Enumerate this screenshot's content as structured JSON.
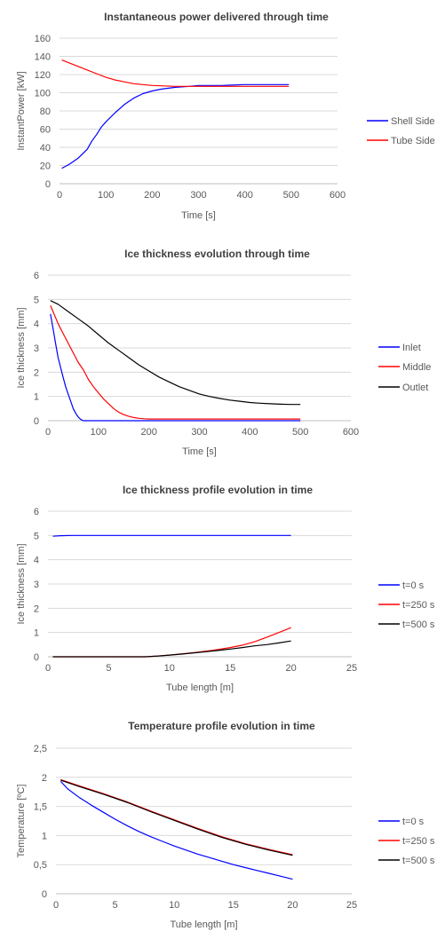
{
  "chart_data": [
    {
      "type": "line",
      "title": "Instantaneous power delivered through time",
      "xlabel": "Time [s]",
      "ylabel": "InstantPower [kW]",
      "xlim": [
        0,
        600
      ],
      "ylim": [
        0,
        160
      ],
      "xticks": [
        0,
        100,
        200,
        300,
        400,
        500,
        600
      ],
      "yticks": [
        0,
        20,
        40,
        60,
        80,
        100,
        120,
        140,
        160
      ],
      "xtick_labels": [
        "0",
        "100",
        "200",
        "300",
        "400",
        "500",
        "600"
      ],
      "ytick_labels": [
        "0",
        "20",
        "40",
        "60",
        "80",
        "100",
        "120",
        "140",
        "160"
      ],
      "grid": "horizontal",
      "legend_position": "right",
      "series": [
        {
          "name": "Shell Side",
          "color": "#0000ff",
          "x": [
            5,
            20,
            40,
            60,
            70,
            80,
            90,
            100,
            120,
            140,
            160,
            180,
            200,
            220,
            250,
            280,
            300,
            350,
            400,
            450,
            495
          ],
          "y": [
            17,
            21,
            28,
            38,
            47,
            54,
            62,
            68,
            78,
            87,
            94,
            99,
            102,
            104,
            106,
            107,
            108,
            108,
            109,
            109,
            109
          ]
        },
        {
          "name": "Tube Side",
          "color": "#ff0000",
          "x": [
            5,
            20,
            40,
            60,
            80,
            100,
            120,
            140,
            160,
            180,
            200,
            250,
            300,
            350,
            400,
            450,
            495
          ],
          "y": [
            136,
            133,
            129,
            125,
            121,
            117,
            114,
            112,
            110,
            109,
            108,
            107,
            107,
            107,
            107,
            107,
            107
          ]
        }
      ]
    },
    {
      "type": "line",
      "title": "Ice thickness evolution through time",
      "xlabel": "Time [s]",
      "ylabel": "Ice thickness [mm]",
      "xlim": [
        0,
        600
      ],
      "ylim": [
        0,
        6
      ],
      "xticks": [
        0,
        100,
        200,
        300,
        400,
        500,
        600
      ],
      "yticks": [
        0,
        1,
        2,
        3,
        4,
        5,
        6
      ],
      "xtick_labels": [
        "0",
        "100",
        "200",
        "300",
        "400",
        "500",
        "600"
      ],
      "ytick_labels": [
        "0",
        "1",
        "2",
        "3",
        "4",
        "5",
        "6"
      ],
      "grid": "horizontal",
      "legend_position": "right",
      "series": [
        {
          "name": "Inlet",
          "color": "#0000ff",
          "x": [
            5,
            10,
            15,
            20,
            25,
            30,
            35,
            40,
            45,
            50,
            55,
            60,
            65,
            70,
            80,
            100,
            150,
            200,
            300,
            400,
            500
          ],
          "y": [
            4.4,
            3.8,
            3.2,
            2.6,
            2.2,
            1.8,
            1.4,
            1.1,
            0.8,
            0.5,
            0.3,
            0.15,
            0.05,
            0,
            0,
            0,
            0,
            0,
            0,
            0,
            0
          ]
        },
        {
          "name": "Middle",
          "color": "#ff0000",
          "x": [
            5,
            10,
            20,
            30,
            40,
            50,
            60,
            70,
            80,
            90,
            100,
            110,
            120,
            130,
            140,
            150,
            160,
            170,
            180,
            190,
            200,
            250,
            300,
            400,
            500
          ],
          "y": [
            4.75,
            4.5,
            4.0,
            3.6,
            3.2,
            2.8,
            2.4,
            2.1,
            1.7,
            1.4,
            1.15,
            0.9,
            0.7,
            0.5,
            0.35,
            0.25,
            0.18,
            0.13,
            0.1,
            0.08,
            0.07,
            0.07,
            0.07,
            0.07,
            0.07
          ]
        },
        {
          "name": "Outlet",
          "color": "#000000",
          "x": [
            5,
            20,
            40,
            60,
            80,
            100,
            120,
            140,
            160,
            180,
            200,
            220,
            240,
            260,
            280,
            300,
            320,
            340,
            360,
            380,
            400,
            420,
            440,
            460,
            480,
            500
          ],
          "y": [
            4.95,
            4.8,
            4.5,
            4.2,
            3.9,
            3.55,
            3.2,
            2.9,
            2.6,
            2.3,
            2.05,
            1.8,
            1.6,
            1.4,
            1.25,
            1.1,
            1.0,
            0.92,
            0.85,
            0.8,
            0.75,
            0.72,
            0.7,
            0.68,
            0.67,
            0.67
          ]
        }
      ]
    },
    {
      "type": "line",
      "title": "Ice thickness profile evolution in time",
      "xlabel": "Tube length [m]",
      "ylabel": "Ice thickness [mm]",
      "xlim": [
        0,
        25
      ],
      "ylim": [
        0,
        6
      ],
      "xticks": [
        0,
        5,
        10,
        15,
        20,
        25
      ],
      "yticks": [
        0,
        1,
        2,
        3,
        4,
        5,
        6
      ],
      "xtick_labels": [
        "0",
        "5",
        "10",
        "15",
        "20",
        "25"
      ],
      "ytick_labels": [
        "0",
        "1",
        "2",
        "3",
        "4",
        "5",
        "6"
      ],
      "grid": "horizontal",
      "legend_position": "right",
      "series": [
        {
          "name": "t=0 s",
          "color": "#0000ff",
          "x": [
            0.4,
            1,
            2,
            5,
            10,
            15,
            20
          ],
          "y": [
            4.97,
            4.99,
            5,
            5,
            5,
            5,
            5
          ]
        },
        {
          "name": "t=250 s",
          "color": "#ff0000",
          "x": [
            0.4,
            5,
            8,
            9,
            10,
            11,
            12,
            13,
            14,
            15,
            16,
            17,
            18,
            19,
            20
          ],
          "y": [
            0,
            0,
            0,
            0.03,
            0.07,
            0.12,
            0.17,
            0.23,
            0.3,
            0.38,
            0.48,
            0.62,
            0.8,
            1.0,
            1.2
          ]
        },
        {
          "name": "t=500 s",
          "color": "#000000",
          "x": [
            0.4,
            5,
            8,
            9,
            10,
            11,
            12,
            13,
            14,
            15,
            16,
            17,
            18,
            19,
            20
          ],
          "y": [
            0,
            0,
            0,
            0.03,
            0.07,
            0.11,
            0.16,
            0.21,
            0.26,
            0.32,
            0.38,
            0.45,
            0.5,
            0.57,
            0.65
          ]
        }
      ]
    },
    {
      "type": "line",
      "title": "Temperature profile evolution in time",
      "xlabel": "Tube length [m]",
      "ylabel": "Temperature [ºC]",
      "xlim": [
        0,
        25
      ],
      "ylim": [
        0,
        2.5
      ],
      "xticks": [
        0,
        5,
        10,
        15,
        20,
        25
      ],
      "yticks": [
        0,
        0.5,
        1,
        1.5,
        2,
        2.5
      ],
      "xtick_labels": [
        "0",
        "5",
        "10",
        "15",
        "20",
        "25"
      ],
      "ytick_labels": [
        "0",
        "0,5",
        "1",
        "1,5",
        "2",
        "2,5"
      ],
      "grid": "horizontal",
      "legend_position": "right",
      "series": [
        {
          "name": "t=0 s",
          "color": "#0000ff",
          "x": [
            0.4,
            1,
            2,
            3,
            4,
            5,
            6,
            7,
            8,
            9,
            10,
            11,
            12,
            13,
            14,
            15,
            16,
            17,
            18,
            19,
            20
          ],
          "y": [
            1.93,
            1.8,
            1.65,
            1.52,
            1.4,
            1.28,
            1.17,
            1.07,
            0.98,
            0.9,
            0.82,
            0.75,
            0.68,
            0.62,
            0.56,
            0.5,
            0.45,
            0.4,
            0.35,
            0.3,
            0.25
          ]
        },
        {
          "name": "t=250 s",
          "color": "#ff0000",
          "x": [
            0.4,
            2,
            4,
            6,
            8,
            10,
            12,
            14,
            16,
            18,
            20
          ],
          "y": [
            1.96,
            1.85,
            1.72,
            1.58,
            1.42,
            1.27,
            1.12,
            0.98,
            0.86,
            0.76,
            0.67
          ]
        },
        {
          "name": "t=500 s",
          "color": "#000000",
          "x": [
            0.4,
            2,
            4,
            6,
            8,
            10,
            12,
            14,
            16,
            18,
            20
          ],
          "y": [
            1.95,
            1.84,
            1.71,
            1.57,
            1.41,
            1.26,
            1.11,
            0.97,
            0.85,
            0.75,
            0.66
          ]
        }
      ]
    }
  ]
}
